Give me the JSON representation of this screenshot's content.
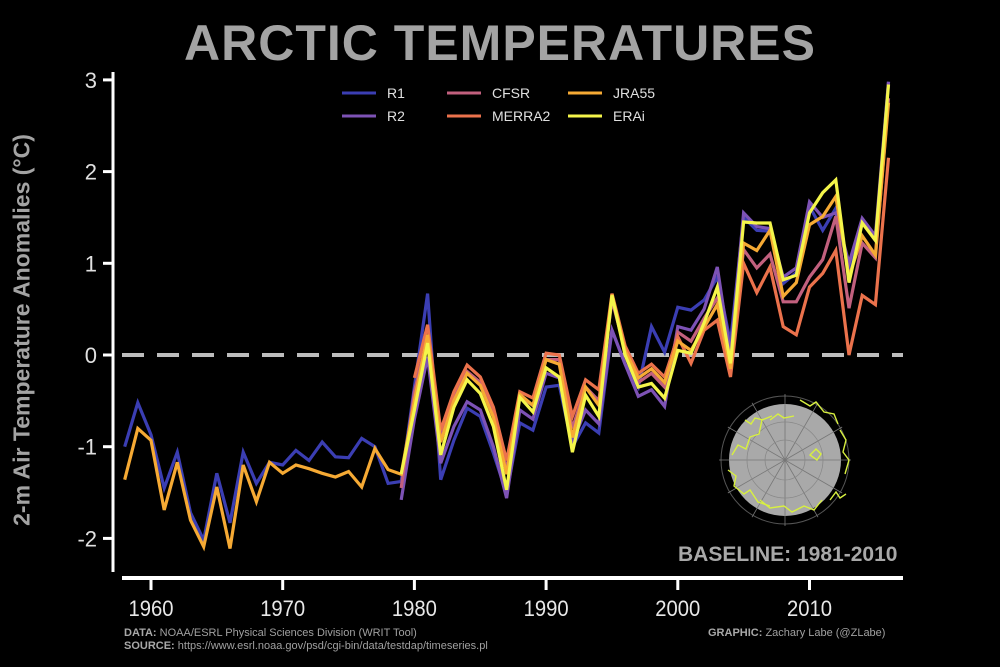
{
  "chart_data": {
    "type": "line",
    "title": "ARCTIC TEMPERATURES",
    "xlabel": "",
    "ylabel": "2-m Air Temperature Anomalies (°C)",
    "xlim": [
      1958,
      2017
    ],
    "ylim": [
      -2.4,
      3.1
    ],
    "xticks": [
      "1960",
      "1970",
      "1980",
      "1990",
      "2000",
      "2010"
    ],
    "yticks": [
      "3",
      "2",
      "1",
      "0",
      "-1",
      "-2"
    ],
    "reference_line": {
      "value": 0,
      "style": "dashed",
      "color": "#bdbdbd"
    },
    "annotation": "BASELINE: 1981-2010",
    "legend_position": "top-center",
    "grid": false,
    "series": [
      {
        "name": "R1",
        "color": "#3b3eb3",
        "start_year": 1958,
        "values": [
          -1.0,
          -0.52,
          -0.87,
          -1.45,
          -1.06,
          -1.72,
          -2.02,
          -1.29,
          -1.83,
          -1.06,
          -1.4,
          -1.17,
          -1.2,
          -1.04,
          -1.15,
          -0.95,
          -1.11,
          -1.12,
          -0.91,
          -1.0,
          -1.4,
          -1.38,
          -0.35,
          0.67,
          -1.36,
          -0.93,
          -0.58,
          -0.67,
          -1.07,
          -1.51,
          -0.74,
          -0.82,
          -0.35,
          -0.33,
          -1.0,
          -0.74,
          -0.85,
          0.27,
          -0.1,
          -0.35,
          0.31,
          0.03,
          0.52,
          0.49,
          0.6,
          0.85,
          0.13,
          1.5,
          1.36,
          1.35,
          0.78,
          0.9,
          1.62,
          1.36,
          1.6,
          0.9,
          1.45,
          1.25,
          2.98
        ]
      },
      {
        "name": "R2",
        "color": "#7d52b5",
        "start_year": 1979,
        "values": [
          -1.58,
          -0.7,
          -0.02,
          -1.18,
          -0.78,
          -0.51,
          -0.6,
          -1.0,
          -1.56,
          -0.6,
          -0.7,
          -0.2,
          -0.25,
          -0.95,
          -0.6,
          -0.75,
          0.27,
          -0.1,
          -0.45,
          -0.38,
          -0.56,
          0.31,
          0.27,
          0.5,
          0.96,
          0.0,
          1.55,
          1.4,
          1.38,
          0.85,
          0.95,
          1.67,
          1.5,
          1.55,
          1.0,
          1.49,
          1.3,
          2.98
        ]
      },
      {
        "name": "CFSR",
        "color": "#c2607e",
        "start_year": 1979,
        "values": [
          -1.45,
          -0.4,
          0.2,
          -0.9,
          -0.45,
          -0.18,
          -0.3,
          -0.65,
          -1.25,
          -0.45,
          -0.55,
          -0.05,
          -0.05,
          -0.8,
          -0.35,
          -0.5,
          0.6,
          0.05,
          -0.3,
          -0.2,
          -0.35,
          0.25,
          0.15,
          0.4,
          0.62,
          -0.05,
          1.15,
          0.95,
          1.1,
          0.58,
          0.58,
          0.85,
          1.04,
          1.51,
          0.51,
          1.22,
          1.06,
          2.8
        ]
      },
      {
        "name": "MERRA2",
        "color": "#eb724c",
        "start_year": 1980,
        "values": [
          -0.25,
          0.33,
          -0.82,
          -0.4,
          -0.11,
          -0.24,
          -0.57,
          -1.15,
          -0.4,
          -0.47,
          0.02,
          0.0,
          -0.67,
          -0.27,
          -0.38,
          0.67,
          0.1,
          -0.2,
          -0.1,
          -0.24,
          0.2,
          -0.09,
          0.27,
          0.38,
          -0.24,
          1.0,
          0.68,
          0.96,
          0.31,
          0.22,
          0.74,
          0.89,
          1.14,
          0.0,
          0.65,
          0.55,
          2.15
        ]
      },
      {
        "name": "JRA55",
        "color": "#f6aa34",
        "start_year": 1958,
        "values": [
          -1.36,
          -0.8,
          -0.93,
          -1.69,
          -1.17,
          -1.8,
          -2.09,
          -1.44,
          -2.11,
          -1.2,
          -1.6,
          -1.17,
          -1.29,
          -1.2,
          -1.24,
          -1.29,
          -1.33,
          -1.27,
          -1.44,
          -1.02,
          -1.25,
          -1.3,
          -0.5,
          0.22,
          -0.95,
          -0.5,
          -0.2,
          -0.33,
          -0.68,
          -1.3,
          -0.43,
          -0.55,
          -0.05,
          -0.1,
          -0.9,
          -0.35,
          -0.55,
          0.66,
          0.05,
          -0.25,
          -0.15,
          -0.3,
          0.15,
          0.05,
          0.3,
          0.55,
          -0.15,
          1.22,
          1.14,
          1.36,
          0.64,
          0.79,
          1.42,
          1.51,
          1.73,
          0.85,
          1.3,
          1.09,
          2.75
        ]
      },
      {
        "name": "ERAi",
        "color": "#f4f54a",
        "start_year": 1979,
        "values": [
          -1.3,
          -0.6,
          0.13,
          -1.09,
          -0.57,
          -0.27,
          -0.42,
          -0.78,
          -1.47,
          -0.46,
          -0.62,
          -0.14,
          -0.24,
          -1.06,
          -0.44,
          -0.67,
          0.65,
          0.0,
          -0.35,
          -0.31,
          -0.47,
          0.05,
          0.02,
          0.35,
          0.74,
          -0.09,
          1.45,
          1.44,
          1.44,
          0.82,
          0.87,
          1.55,
          1.77,
          1.91,
          0.79,
          1.44,
          1.25,
          2.95
        ]
      }
    ]
  },
  "credits": {
    "data_label": "DATA:",
    "data_text": "NOAA/ESRL Physical Sciences Division (WRIT Tool)",
    "source_label": "SOURCE:",
    "source_text": "https://www.esrl.noaa.gov/psd/cgi-bin/data/testdap/timeseries.pl",
    "graphic_label": "GRAPHIC:",
    "graphic_text": "Zachary Labe (@ZLabe)"
  },
  "inset": {
    "icon": "arctic-globe-map-icon",
    "land_color": "#d8f040",
    "disk_color": "#a9a9a9"
  }
}
